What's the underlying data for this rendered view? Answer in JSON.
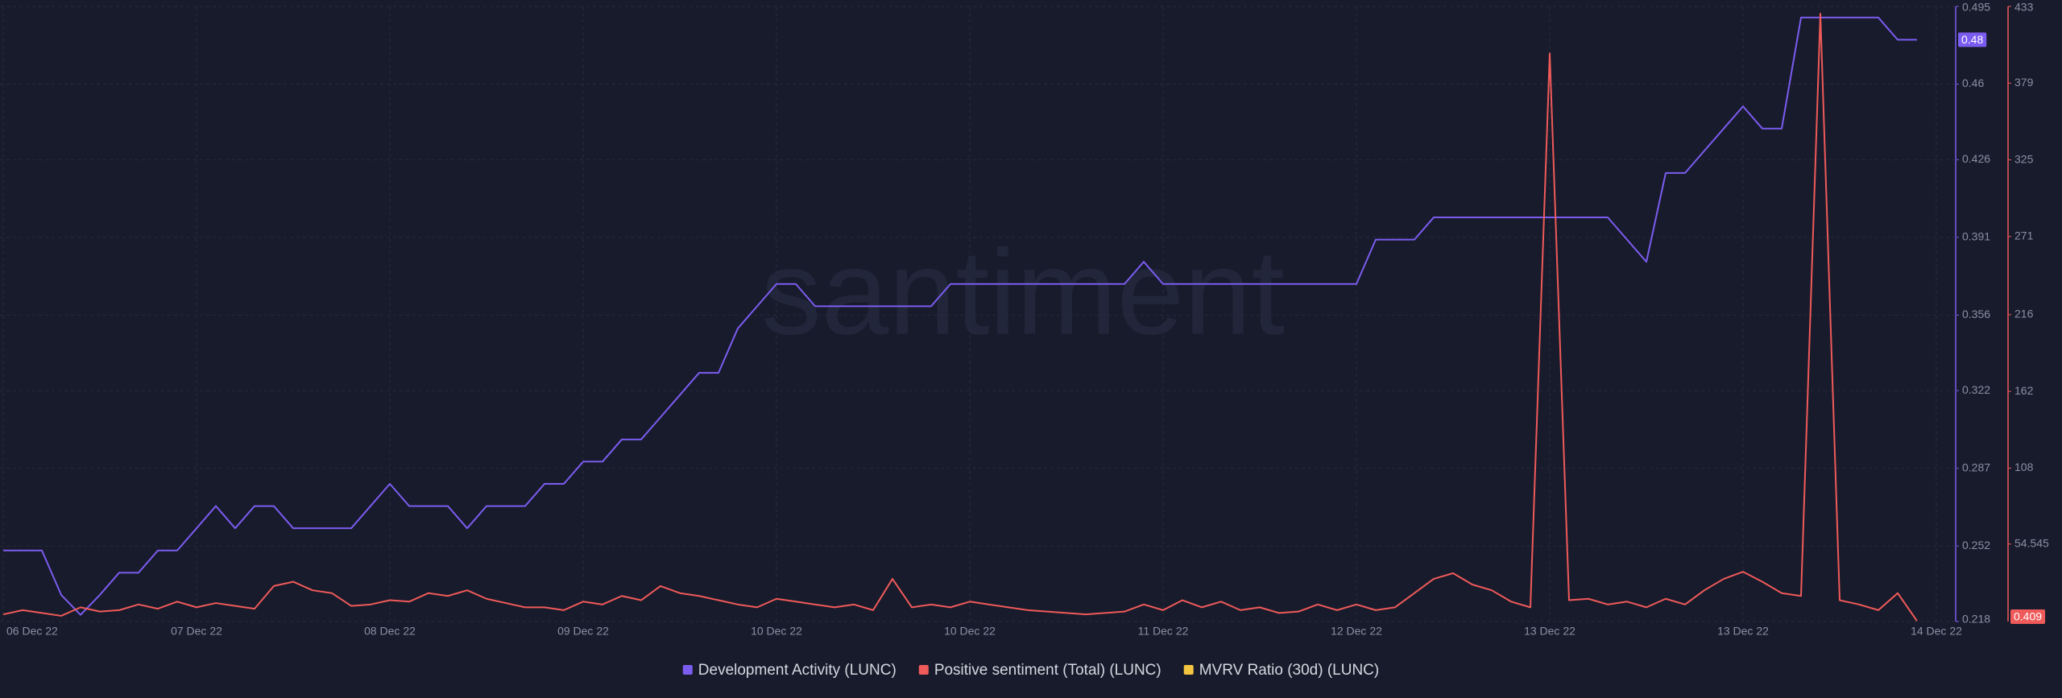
{
  "chart_data": {
    "type": "line",
    "watermark": "santiment",
    "categories": [
      "06 Dec 22",
      null,
      null,
      null,
      null,
      null,
      null,
      null,
      null,
      null,
      "07 Dec 22",
      null,
      null,
      null,
      null,
      null,
      null,
      null,
      null,
      null,
      "08 Dec 22",
      null,
      null,
      null,
      null,
      null,
      null,
      null,
      null,
      null,
      "09 Dec 22",
      null,
      null,
      null,
      null,
      null,
      null,
      null,
      null,
      null,
      "10 Dec 22",
      null,
      null,
      null,
      null,
      null,
      null,
      null,
      null,
      null,
      "10 Dec 22",
      null,
      null,
      null,
      null,
      null,
      null,
      null,
      null,
      null,
      "11 Dec 22",
      null,
      null,
      null,
      null,
      null,
      null,
      null,
      null,
      null,
      "12 Dec 22",
      null,
      null,
      null,
      null,
      null,
      null,
      null,
      null,
      null,
      "13 Dec 22",
      null,
      null,
      null,
      null,
      null,
      null,
      null,
      null,
      null,
      "13 Dec 22",
      null,
      null,
      null,
      null,
      null,
      null,
      null,
      null,
      null,
      "14 Dec 22"
    ],
    "ylim": [
      0.218,
      0.495
    ],
    "yticks": [
      0.218,
      0.252,
      0.287,
      0.322,
      0.356,
      0.391,
      0.426,
      0.46,
      0.495
    ],
    "y2lim": [
      0,
      433
    ],
    "y2ticks": [
      54.545,
      108,
      162,
      216,
      271,
      325,
      379,
      433
    ],
    "grid": true,
    "legend": "bottom",
    "series": [
      {
        "name": "Development Activity (LUNC)",
        "color": "#7b5cf0",
        "values": [
          0.25,
          0.25,
          0.25,
          0.23,
          0.221,
          0.23,
          0.24,
          0.24,
          0.25,
          0.25,
          0.26,
          0.27,
          0.26,
          0.27,
          0.27,
          0.26,
          0.26,
          0.26,
          0.26,
          0.27,
          0.28,
          0.27,
          0.27,
          0.27,
          0.26,
          0.27,
          0.27,
          0.27,
          0.28,
          0.28,
          0.29,
          0.29,
          0.3,
          0.3,
          0.31,
          0.32,
          0.33,
          0.33,
          0.35,
          0.36,
          0.37,
          0.37,
          0.36,
          0.36,
          0.36,
          0.36,
          0.36,
          0.36,
          0.36,
          0.37,
          0.37,
          0.37,
          0.37,
          0.37,
          0.37,
          0.37,
          0.37,
          0.37,
          0.37,
          0.38,
          0.37,
          0.37,
          0.37,
          0.37,
          0.37,
          0.37,
          0.37,
          0.37,
          0.37,
          0.37,
          0.37,
          0.39,
          0.39,
          0.39,
          0.4,
          0.4,
          0.4,
          0.4,
          0.4,
          0.4,
          0.4,
          0.4,
          0.4,
          0.4,
          0.39,
          0.38,
          0.42,
          0.42,
          0.43,
          0.44,
          0.45,
          0.44,
          0.44,
          0.49,
          0.49,
          0.49,
          0.49,
          0.49,
          0.48,
          0.48,
          null
        ]
      },
      {
        "name": "Positive sentiment (Total) (LUNC)",
        "color": "#ef5a5a",
        "axis": "y2",
        "values": [
          5,
          8,
          6,
          4,
          10,
          7,
          8,
          12,
          9,
          14,
          10,
          13,
          11,
          9,
          25,
          28,
          22,
          20,
          11,
          12,
          15,
          14,
          20,
          18,
          22,
          16,
          13,
          10,
          10,
          8,
          14,
          12,
          18,
          15,
          25,
          20,
          18,
          15,
          12,
          10,
          16,
          14,
          12,
          10,
          12,
          8,
          30,
          10,
          12,
          10,
          14,
          12,
          10,
          8,
          7,
          6,
          5,
          6,
          7,
          12,
          8,
          15,
          10,
          14,
          8,
          10,
          6,
          7,
          12,
          8,
          12,
          8,
          10,
          20,
          30,
          34,
          26,
          22,
          14,
          10,
          400,
          15,
          16,
          12,
          14,
          10,
          16,
          12,
          22,
          30,
          35,
          28,
          20,
          18,
          428,
          15,
          12,
          8,
          20,
          0.409,
          null
        ]
      },
      {
        "name": "MVRV Ratio (30d) (LUNC)",
        "color": "#f3c440",
        "values": [
          null,
          null,
          null,
          null,
          null,
          null,
          null,
          null,
          null,
          null,
          null,
          null,
          null,
          null,
          null,
          null,
          null,
          null,
          null,
          null,
          null,
          null,
          null,
          null,
          null,
          null,
          null,
          null,
          null,
          null,
          null,
          null,
          null,
          null,
          null,
          null,
          null,
          null,
          null,
          null,
          null,
          null,
          null,
          null,
          null,
          null,
          null,
          null,
          null,
          null,
          null,
          null,
          null,
          null,
          null,
          null,
          null,
          null,
          null,
          null,
          null,
          null,
          null,
          null,
          null,
          null,
          null,
          null,
          null,
          null,
          null,
          null,
          null,
          null,
          null,
          null,
          null,
          null,
          null,
          null,
          null,
          null,
          null,
          null,
          null,
          null,
          null,
          null,
          null,
          null,
          null,
          null,
          null,
          null,
          null,
          null,
          null,
          null,
          null,
          null,
          null
        ]
      }
    ]
  }
}
